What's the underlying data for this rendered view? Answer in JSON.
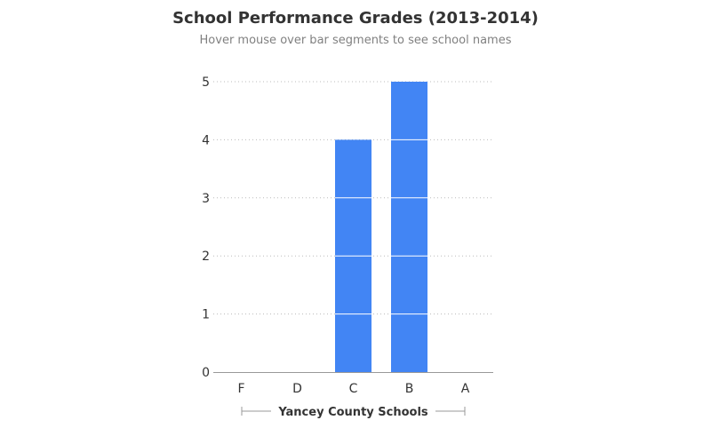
{
  "chart_data": {
    "type": "bar",
    "title": "School Performance Grades (2013-2014)",
    "subtitle": "Hover mouse over bar segments to see school names",
    "categories": [
      "F",
      "D",
      "C",
      "B",
      "A"
    ],
    "values": [
      0,
      0,
      4,
      5,
      0
    ],
    "xlabel": "Yancey County Schools",
    "ylabel": "",
    "ylim": [
      0,
      5
    ],
    "yticks": [
      "0",
      "1",
      "2",
      "3",
      "4",
      "5"
    ],
    "grid": true,
    "colors": {
      "bar": "#4285f4",
      "segment_line": "#ffffff",
      "grid": "#bbbbbb",
      "axis": "#999999",
      "text": "#333333"
    }
  }
}
